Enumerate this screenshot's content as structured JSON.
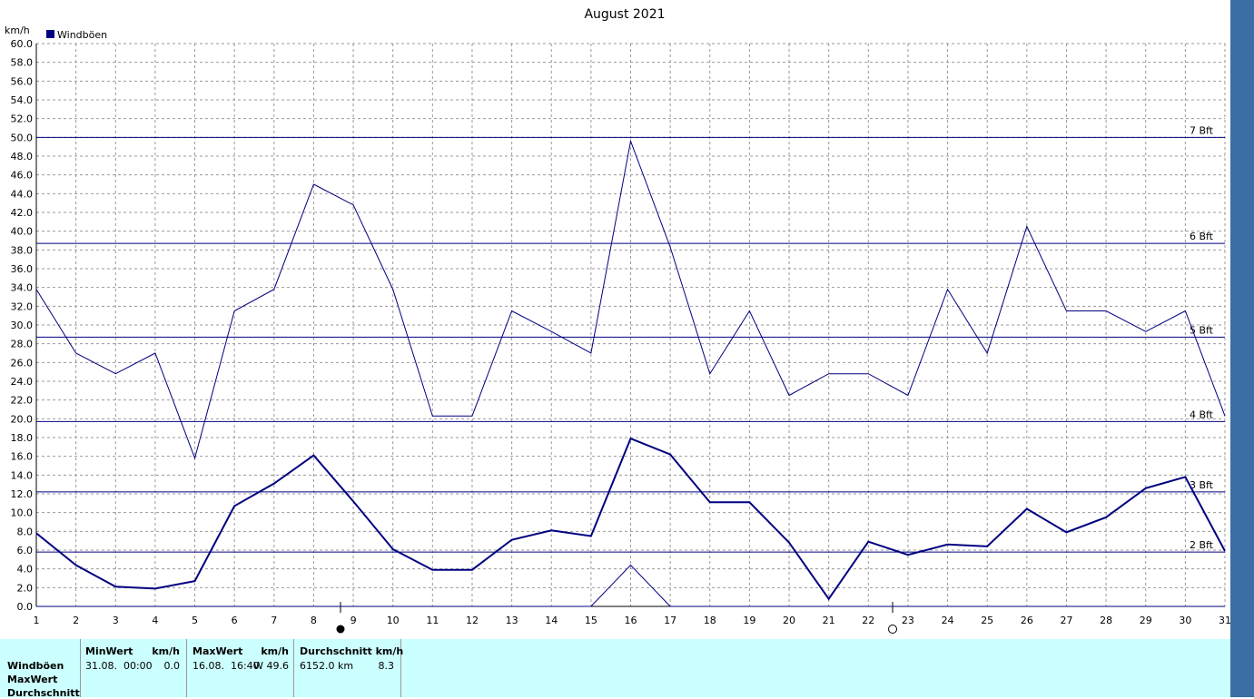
{
  "chart_data": {
    "type": "line",
    "title": "August 2021",
    "y_unit": "km/h",
    "legend_label": "Windböen",
    "x": [
      1,
      2,
      3,
      4,
      5,
      6,
      7,
      8,
      9,
      10,
      11,
      12,
      13,
      14,
      15,
      16,
      17,
      18,
      19,
      20,
      21,
      22,
      23,
      24,
      25,
      26,
      27,
      28,
      29,
      30,
      31
    ],
    "xlim": [
      1,
      31
    ],
    "xticks": [
      1,
      2,
      3,
      4,
      5,
      6,
      7,
      8,
      9,
      10,
      11,
      12,
      13,
      14,
      15,
      16,
      17,
      18,
      19,
      20,
      21,
      22,
      23,
      24,
      25,
      26,
      27,
      28,
      29,
      30,
      31
    ],
    "ylim": [
      0,
      60
    ],
    "yticks": [
      {
        "value": 0,
        "label": "0.0"
      },
      {
        "value": 2,
        "label": "2.0"
      },
      {
        "value": 4,
        "label": "4.0"
      },
      {
        "value": 6,
        "label": "6.0"
      },
      {
        "value": 8,
        "label": "8.0"
      },
      {
        "value": 10,
        "label": "10.0"
      },
      {
        "value": 12,
        "label": "12.0"
      },
      {
        "value": 14,
        "label": "14.0"
      },
      {
        "value": 16,
        "label": "16.0"
      },
      {
        "value": 18,
        "label": "18.0"
      },
      {
        "value": 20,
        "label": "20.0"
      },
      {
        "value": 22,
        "label": "22.0"
      },
      {
        "value": 24,
        "label": "24.0"
      },
      {
        "value": 26,
        "label": "26.0"
      },
      {
        "value": 28,
        "label": "28.0"
      },
      {
        "value": 30,
        "label": "30.0"
      },
      {
        "value": 32,
        "label": "32.0"
      },
      {
        "value": 34,
        "label": "34.0"
      },
      {
        "value": 36,
        "label": "36.0"
      },
      {
        "value": 38,
        "label": "38.0"
      },
      {
        "value": 40,
        "label": "40.0"
      },
      {
        "value": 42,
        "label": "42.0"
      },
      {
        "value": 44,
        "label": "44.0"
      },
      {
        "value": 46,
        "label": "46.0"
      },
      {
        "value": 48,
        "label": "48.0"
      },
      {
        "value": 50,
        "label": "50.0"
      },
      {
        "value": 52,
        "label": "52.0"
      },
      {
        "value": 54,
        "label": "54.0"
      },
      {
        "value": 56,
        "label": "56.0"
      },
      {
        "value": 58,
        "label": "58.0"
      },
      {
        "value": 60,
        "label": "60.0"
      }
    ],
    "grid": true,
    "series": [
      {
        "color": "#000080",
        "line_width": 1,
        "values": [
          33.8,
          27,
          24.8,
          27,
          15.8,
          31.5,
          33.8,
          45,
          42.8,
          33.8,
          20.3,
          20.3,
          31.5,
          29.3,
          27,
          49.6,
          38.3,
          24.8,
          31.5,
          22.5,
          24.8,
          24.8,
          22.5,
          33.8,
          27,
          40.5,
          31.5,
          31.5,
          29.3,
          31.5,
          20.3
        ]
      },
      {
        "color": "#000080",
        "line_width": 2,
        "values": [
          7.8,
          4.4,
          2.1,
          1.9,
          2.7,
          10.7,
          13.1,
          16.1,
          11.2,
          6.1,
          3.9,
          3.9,
          7.1,
          8.1,
          7.5,
          17.9,
          16.2,
          11.1,
          11.1,
          6.8,
          0.8,
          6.9,
          5.5,
          6.6,
          6.4,
          10.4,
          7.9,
          9.5,
          12.6,
          13.8,
          5.9
        ]
      },
      {
        "color": "#000080",
        "line_width": 1,
        "values": [
          0,
          0,
          0,
          0,
          0,
          0,
          0,
          0,
          0,
          0,
          0,
          0,
          0,
          0,
          0,
          4.4,
          0,
          0,
          0,
          0,
          0,
          0,
          0,
          0,
          0,
          0,
          0,
          0,
          0,
          0,
          0
        ]
      }
    ],
    "reference_lines": [
      {
        "value": 5.8,
        "label": "2 Bft"
      },
      {
        "value": 12.2,
        "label": "3 Bft"
      },
      {
        "value": 19.7,
        "label": "4 Bft"
      },
      {
        "value": 28.7,
        "label": "5 Bft"
      },
      {
        "value": 38.7,
        "label": "6 Bft"
      },
      {
        "value": 50,
        "label": "7 Bft"
      }
    ]
  },
  "table": {
    "row_labels": [
      "Windböen",
      "MaxWert",
      "Durchschnitt"
    ],
    "headers": [
      [
        "MinWert",
        "km/h"
      ],
      [
        "MaxWert",
        "km/h"
      ],
      [
        "Durchschnitt km/h"
      ]
    ],
    "cells": [
      [
        "31.08.  00:00",
        "0.0"
      ],
      [
        "16.08.  16:40",
        "W 49.6"
      ],
      [
        "6152.0 km",
        "8.3"
      ]
    ]
  }
}
